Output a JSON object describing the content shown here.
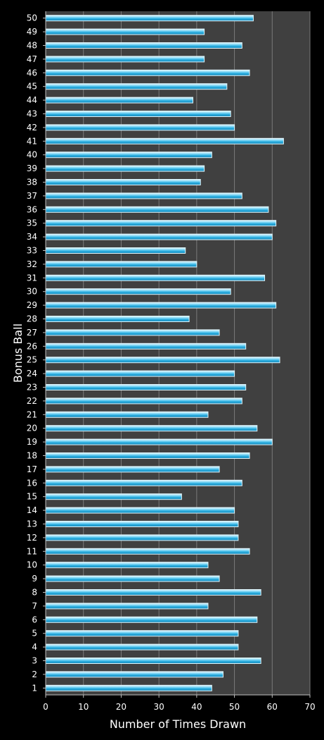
{
  "chart_data": {
    "type": "bar",
    "orientation": "horizontal",
    "title": "",
    "xlabel": "Number of Times Drawn",
    "ylabel": "Bonus Ball",
    "xlim": [
      0,
      70
    ],
    "xticks": [
      0,
      10,
      20,
      30,
      40,
      50,
      60,
      70
    ],
    "grid": true,
    "legend": "none",
    "colors": {
      "background": "#000000",
      "plot_area": "#404040",
      "bar_fill": "#2aaee0",
      "bar_highlight": "#b8ecfb",
      "bar_border": "#dff6fd",
      "gridline": "#7a7a7a",
      "text": "#ffffff"
    },
    "categories": [
      "1",
      "2",
      "3",
      "4",
      "5",
      "6",
      "7",
      "8",
      "9",
      "10",
      "11",
      "12",
      "13",
      "14",
      "15",
      "16",
      "17",
      "18",
      "19",
      "20",
      "21",
      "22",
      "23",
      "24",
      "25",
      "26",
      "27",
      "28",
      "29",
      "30",
      "31",
      "32",
      "33",
      "34",
      "35",
      "36",
      "37",
      "38",
      "39",
      "40",
      "41",
      "42",
      "43",
      "44",
      "45",
      "46",
      "47",
      "48",
      "49",
      "50"
    ],
    "values": [
      44,
      47,
      57,
      51,
      51,
      56,
      43,
      57,
      46,
      43,
      54,
      51,
      51,
      50,
      36,
      52,
      46,
      54,
      60,
      56,
      43,
      52,
      53,
      50,
      62,
      53,
      46,
      38,
      61,
      49,
      58,
      40,
      37,
      60,
      61,
      59,
      52,
      41,
      42,
      44,
      63,
      50,
      49,
      39,
      48,
      54,
      42,
      52,
      42,
      55
    ]
  }
}
